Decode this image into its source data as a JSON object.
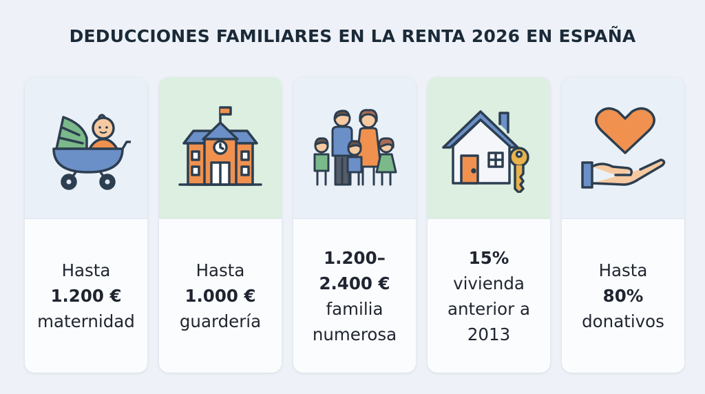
{
  "title": "DEDUCCIONES FAMILIARES EN LA RENTA 2026 EN ESPAÑA",
  "cards": [
    {
      "icon": "baby-stroller-icon",
      "lines": [
        "Hasta",
        "1.200 €",
        "maternidad"
      ],
      "bold": [
        1
      ]
    },
    {
      "icon": "school-building-icon",
      "lines": [
        "Hasta",
        "1.000 €",
        "guardería"
      ],
      "bold": [
        1
      ]
    },
    {
      "icon": "family-icon",
      "lines": [
        "1.200–",
        "2.400 €",
        "familia",
        "numerosa"
      ],
      "bold": [
        0,
        1
      ]
    },
    {
      "icon": "house-key-icon",
      "lines": [
        "15%",
        "vivienda",
        "anterior a",
        "2013"
      ],
      "bold": [
        0
      ]
    },
    {
      "icon": "heart-hand-icon",
      "lines": [
        "Hasta",
        "80%",
        "donativos"
      ],
      "bold": [
        1
      ]
    }
  ],
  "colors": {
    "background": "#eef2f8",
    "panel_blue": "#eaf0f7",
    "panel_green": "#dcefe0",
    "outline": "#2c3e50",
    "orange": "#f0914f",
    "blue": "#6b8fc7",
    "green": "#7bb88a"
  }
}
